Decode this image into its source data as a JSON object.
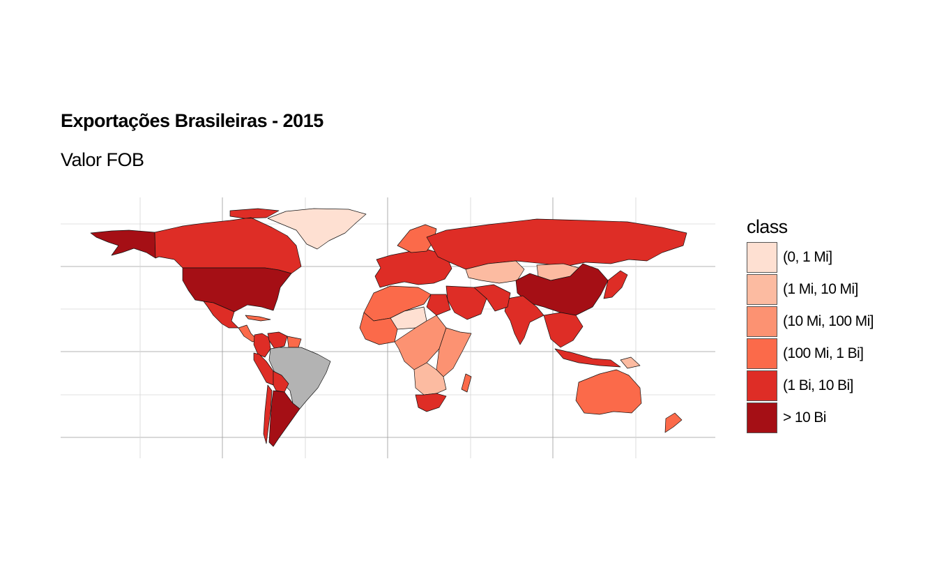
{
  "title": "Exportações Brasileiras - 2015",
  "subtitle": "Valor FOB",
  "legend": {
    "title": "class",
    "classes": [
      {
        "label": "(0, 1 Mi]",
        "color": "#fee0d2"
      },
      {
        "label": "(1 Mi, 10 Mi]",
        "color": "#fcbba1"
      },
      {
        "label": "(10 Mi, 100 Mi]",
        "color": "#fc9272"
      },
      {
        "label": "(100 Mi, 1 Bi]",
        "color": "#fb6a4a"
      },
      {
        "label": "(1 Bi, 10 Bi]",
        "color": "#de2d26"
      },
      {
        "label": "> 10 Bi",
        "color": "#a50f15"
      }
    ],
    "no_data_color": "#b3b3b3"
  },
  "regions": [
    {
      "name": "Alaska",
      "class": "> 10 Bi"
    },
    {
      "name": "Canada",
      "class": "(1 Bi, 10 Bi]"
    },
    {
      "name": "United States",
      "class": "> 10 Bi"
    },
    {
      "name": "Mexico",
      "class": "(1 Bi, 10 Bi]"
    },
    {
      "name": "Central America",
      "class": "(100 Mi, 1 Bi]"
    },
    {
      "name": "Greenland",
      "class": "(0, 1 Mi]"
    },
    {
      "name": "Colombia",
      "class": "(1 Bi, 10 Bi]"
    },
    {
      "name": "Venezuela",
      "class": "(1 Bi, 10 Bi]"
    },
    {
      "name": "Guianas",
      "class": "(100 Mi, 1 Bi]"
    },
    {
      "name": "Peru",
      "class": "(1 Bi, 10 Bi]"
    },
    {
      "name": "Brazil",
      "class": "no data"
    },
    {
      "name": "Bolivia",
      "class": "(1 Bi, 10 Bi]"
    },
    {
      "name": "Chile",
      "class": "(1 Bi, 10 Bi]"
    },
    {
      "name": "Argentina",
      "class": "> 10 Bi"
    },
    {
      "name": "Europe",
      "class": "(1 Bi, 10 Bi]"
    },
    {
      "name": "Scandinavia",
      "class": "(100 Mi, 1 Bi]"
    },
    {
      "name": "Russia",
      "class": "(1 Bi, 10 Bi]"
    },
    {
      "name": "Kazakhstan",
      "class": "(1 Mi, 10 Mi]"
    },
    {
      "name": "Mongolia",
      "class": "(1 Mi, 10 Mi]"
    },
    {
      "name": "China",
      "class": "> 10 Bi"
    },
    {
      "name": "Japan",
      "class": "(1 Bi, 10 Bi]"
    },
    {
      "name": "India",
      "class": "(1 Bi, 10 Bi]"
    },
    {
      "name": "Middle East",
      "class": "(1 Bi, 10 Bi]"
    },
    {
      "name": "Iran",
      "class": "(1 Bi, 10 Bi]"
    },
    {
      "name": "Southeast Asia",
      "class": "(1 Bi, 10 Bi]"
    },
    {
      "name": "Indonesia",
      "class": "(1 Bi, 10 Bi]"
    },
    {
      "name": "North Africa",
      "class": "(100 Mi, 1 Bi]"
    },
    {
      "name": "Egypt",
      "class": "(1 Bi, 10 Bi]"
    },
    {
      "name": "Sahel",
      "class": "(0, 1 Mi]"
    },
    {
      "name": "West Africa",
      "class": "(100 Mi, 1 Bi]"
    },
    {
      "name": "Central Africa",
      "class": "(10 Mi, 100 Mi]"
    },
    {
      "name": "East Africa",
      "class": "(10 Mi, 100 Mi]"
    },
    {
      "name": "Southern Africa",
      "class": "(1 Mi, 10 Mi]"
    },
    {
      "name": "South Africa",
      "class": "(1 Bi, 10 Bi]"
    },
    {
      "name": "Madagascar",
      "class": "(100 Mi, 1 Bi]"
    },
    {
      "name": "Australia",
      "class": "(100 Mi, 1 Bi]"
    },
    {
      "name": "New Zealand",
      "class": "(100 Mi, 1 Bi]"
    },
    {
      "name": "Papua New Guinea",
      "class": "(1 Mi, 10 Mi]"
    },
    {
      "name": "Cuba",
      "class": "(100 Mi, 1 Bi]"
    }
  ]
}
